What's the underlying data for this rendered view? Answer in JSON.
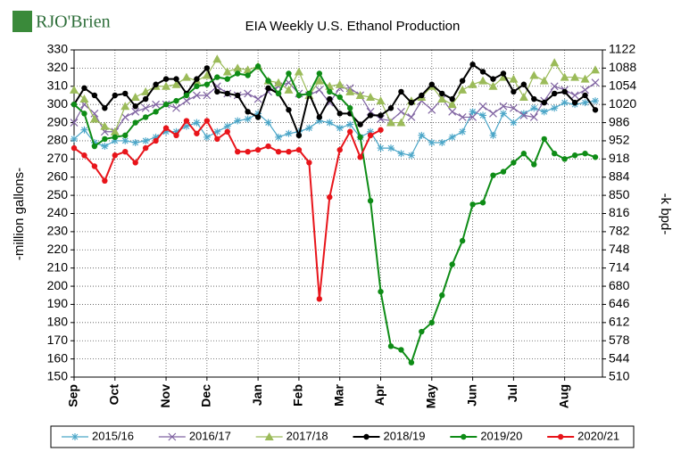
{
  "chart_data": {
    "type": "line",
    "logo": "RJO'Brien",
    "title": "EIA Weekly U.S. Ethanol Production",
    "ylabel": "-million gallons-",
    "y2label": "-k bpd-",
    "categories": [
      "Sep",
      null,
      null,
      null,
      "Oct",
      null,
      null,
      null,
      null,
      "Nov",
      null,
      null,
      null,
      "Dec",
      null,
      null,
      null,
      null,
      "Jan",
      null,
      null,
      null,
      "Feb",
      null,
      null,
      null,
      "Mar",
      null,
      null,
      null,
      "Apr",
      null,
      null,
      null,
      null,
      "May",
      null,
      null,
      null,
      "Jun",
      null,
      null,
      null,
      "Jul",
      null,
      null,
      null,
      null,
      "Aug",
      null,
      null,
      null
    ],
    "ylim": [
      150,
      330
    ],
    "yticks": [
      150,
      160,
      170,
      180,
      190,
      200,
      210,
      220,
      230,
      240,
      250,
      260,
      270,
      280,
      290,
      300,
      310,
      320,
      330
    ],
    "y2lim": [
      510,
      1122
    ],
    "y2ticks": [
      510,
      544,
      578,
      612,
      646,
      680,
      714,
      748,
      782,
      816,
      850,
      884,
      918,
      952,
      986,
      1020,
      1054,
      1088,
      1122
    ],
    "grid": true,
    "legend": "bottom",
    "series": [
      {
        "name": "2015/16",
        "color": "#4ba6c8",
        "marker": "star",
        "values": [
          281,
          286,
          279,
          277,
          280,
          280,
          279,
          280,
          282,
          285,
          285,
          288,
          290,
          282,
          285,
          288,
          291,
          292,
          295,
          290,
          282,
          284,
          285,
          287,
          291,
          290,
          287,
          289,
          282,
          285,
          276,
          276,
          273,
          272,
          283,
          279,
          279,
          282,
          285,
          296,
          294,
          283,
          295,
          290,
          295,
          298,
          296,
          298,
          301,
          300,
          301,
          302
        ]
      },
      {
        "name": "2016/17",
        "color": "#8064a2",
        "marker": "x",
        "values": [
          290,
          300,
          295,
          285,
          285,
          293,
          296,
          298,
          300,
          300,
          298,
          302,
          305,
          305,
          310,
          306,
          305,
          306,
          303,
          307,
          310,
          312,
          306,
          305,
          308,
          301,
          309,
          309,
          305,
          296,
          292,
          291,
          296,
          293,
          302,
          297,
          303,
          296,
          293,
          293,
          299,
          295,
          299,
          298,
          294,
          293,
          302,
          310,
          308,
          305,
          308,
          312
        ]
      },
      {
        "name": "2017/18",
        "color": "#9bbb59",
        "marker": "triangle",
        "values": [
          308,
          303,
          292,
          288,
          285,
          299,
          304,
          307,
          310,
          310,
          311,
          315,
          313,
          316,
          325,
          318,
          320,
          319,
          321,
          313,
          312,
          308,
          318,
          305,
          313,
          310,
          311,
          307,
          305,
          304,
          302,
          290,
          290,
          302,
          304,
          310,
          303,
          300,
          308,
          311,
          313,
          310,
          315,
          314,
          304,
          316,
          313,
          323,
          315,
          315,
          314,
          319
        ]
      },
      {
        "name": "2018/19",
        "color": "#000000",
        "marker": "circle",
        "values": [
          300,
          309,
          305,
          298,
          305,
          306,
          299,
          303,
          311,
          314,
          314,
          306,
          314,
          320,
          307,
          306,
          305,
          296,
          293,
          309,
          306,
          297,
          283,
          306,
          293,
          303,
          295,
          295,
          289,
          294,
          294,
          298,
          307,
          301,
          305,
          311,
          306,
          303,
          313,
          322,
          318,
          314,
          317,
          307,
          311,
          303,
          301,
          306,
          307,
          301,
          305,
          297
        ]
      },
      {
        "name": "2019/20",
        "color": "#0e8c16",
        "marker": "circle",
        "values": [
          300,
          295,
          277,
          281,
          282,
          283,
          290,
          293,
          296,
          300,
          302,
          305,
          310,
          311,
          315,
          314,
          317,
          316,
          321,
          313,
          306,
          317,
          305,
          306,
          317,
          307,
          304,
          298,
          282,
          247,
          197,
          167,
          165,
          158,
          175,
          180,
          195,
          212,
          225,
          245,
          246,
          261,
          263,
          268,
          273,
          267,
          281,
          273,
          270,
          272,
          273,
          271
        ]
      },
      {
        "name": "2020/21",
        "color": "#e8141a",
        "marker": "circle",
        "values": [
          276,
          272,
          266,
          258,
          272,
          274,
          268,
          276,
          280,
          287,
          283,
          291,
          284,
          291,
          281,
          285,
          274,
          274,
          275,
          277,
          274,
          274,
          275,
          268,
          193,
          249,
          275,
          285,
          271,
          283,
          286,
          null,
          null,
          null,
          null,
          null,
          null,
          null,
          null,
          null,
          null,
          null,
          null,
          null,
          null,
          null,
          null,
          null,
          null,
          null,
          null,
          null
        ]
      }
    ]
  }
}
